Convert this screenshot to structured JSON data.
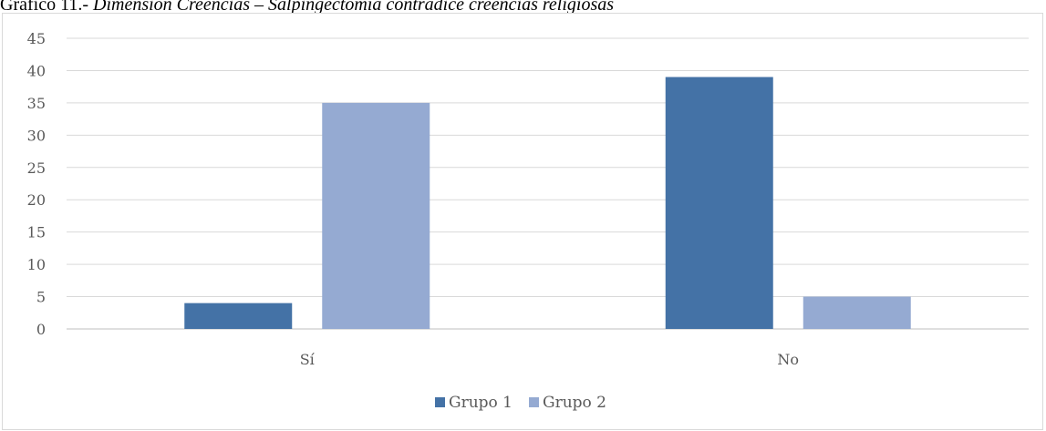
{
  "caption": {
    "prefix": "Gráfico 11.- ",
    "title": "Dimensión Creencias – Salpingectomía contradice creencias religiosas"
  },
  "chart_data": {
    "type": "bar",
    "categories": [
      "Sí",
      "No"
    ],
    "series": [
      {
        "name": "Grupo 1",
        "values": [
          4,
          39
        ],
        "color": "#4472a6"
      },
      {
        "name": "Grupo 2",
        "values": [
          35,
          5
        ],
        "color": "#95aad2"
      }
    ],
    "ylim": [
      0,
      45
    ],
    "yticks": [
      0,
      5,
      10,
      15,
      20,
      25,
      30,
      35,
      40,
      45
    ],
    "grid": true,
    "legend": "bottom"
  }
}
